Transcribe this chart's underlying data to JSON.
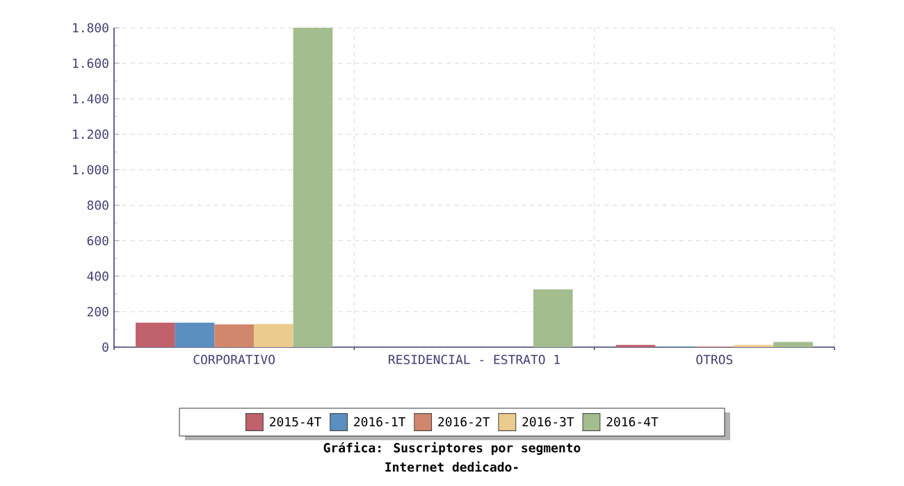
{
  "chart_data": {
    "type": "bar",
    "title": "Gráfica: Suscriptores por segmento",
    "subtitle": "Internet dedicado-",
    "categories": [
      "CORPORATIVO",
      "RESIDENCIAL - ESTRATO 1",
      "OTROS"
    ],
    "series": [
      {
        "name": "2015-4T",
        "color": "#c0616b",
        "values": [
          138,
          0,
          13
        ]
      },
      {
        "name": "2016-1T",
        "color": "#5b8fc0",
        "values": [
          138,
          0,
          4
        ]
      },
      {
        "name": "2016-2T",
        "color": "#d0876c",
        "values": [
          128,
          0,
          4
        ]
      },
      {
        "name": "2016-3T",
        "color": "#ebcb8e",
        "values": [
          130,
          0,
          13
        ]
      },
      {
        "name": "2016-4T",
        "color": "#a3bd8e",
        "values": [
          1800,
          326,
          29
        ]
      }
    ],
    "ylim": [
      0,
      1800
    ],
    "yticks": [
      {
        "value": 0,
        "label": "0"
      },
      {
        "value": 200,
        "label": "200"
      },
      {
        "value": 400,
        "label": "400"
      },
      {
        "value": 600,
        "label": "600"
      },
      {
        "value": 800,
        "label": "800"
      },
      {
        "value": 1000,
        "label": "1.000"
      },
      {
        "value": 1200,
        "label": "1.200"
      },
      {
        "value": 1400,
        "label": "1.400"
      },
      {
        "value": 1600,
        "label": "1.600"
      },
      {
        "value": 1800,
        "label": "1.800"
      }
    ],
    "grid": true,
    "legend": "bottom"
  }
}
